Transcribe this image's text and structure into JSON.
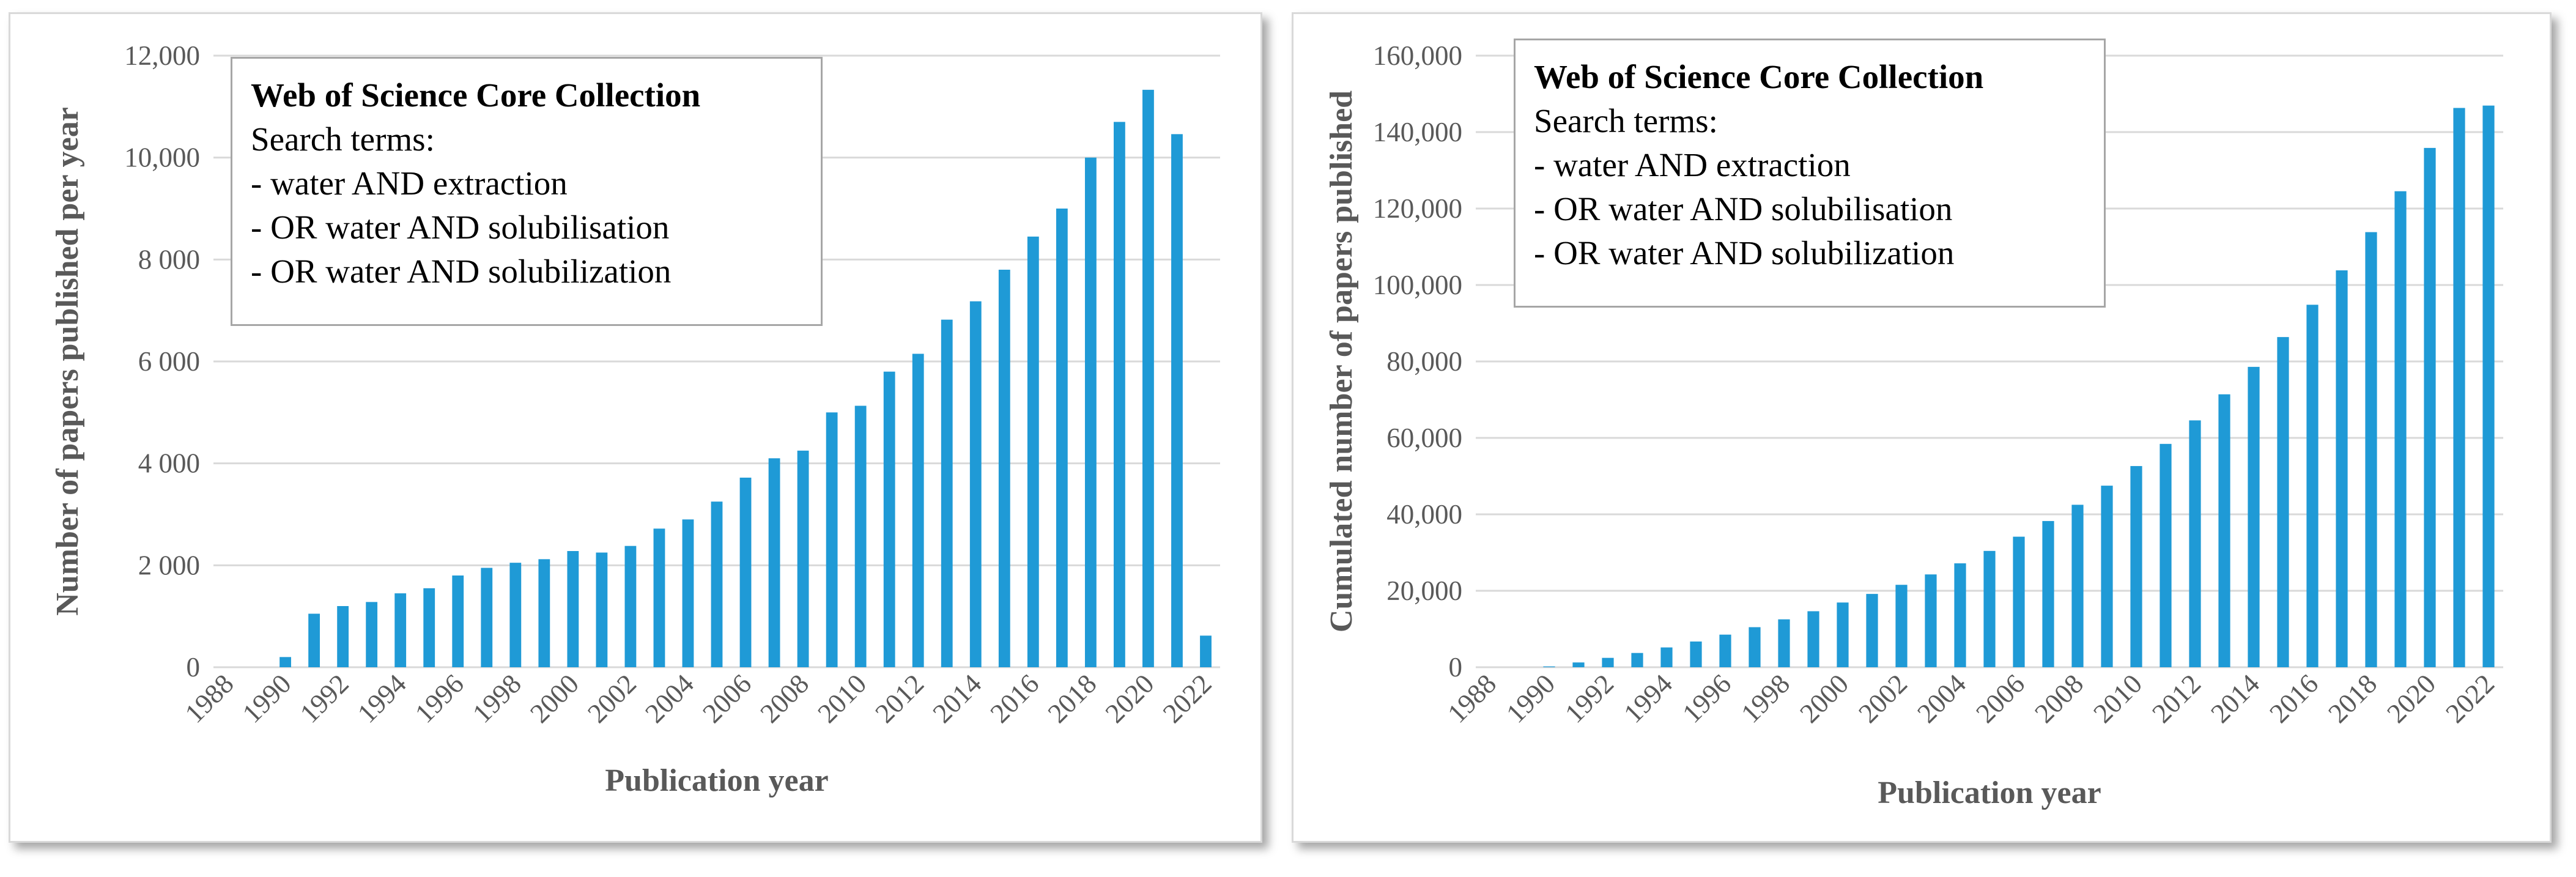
{
  "chart_data": [
    {
      "type": "bar",
      "title": "",
      "info_box": {
        "title": "Web of Science Core Collection",
        "lines": [
          "Search terms:",
          "- water AND extraction",
          "- OR water AND solubilisation",
          "- OR water AND solubilization"
        ]
      },
      "xlabel": "Publication year",
      "ylabel": "Number of papers published  per year",
      "ylim": [
        0,
        12000
      ],
      "y_ticks": [
        0,
        2000,
        4000,
        6000,
        8000,
        10000,
        12000
      ],
      "y_tick_labels": [
        "0",
        "2 000",
        "4 000",
        "6 000",
        "8 000",
        "10,000",
        "12,000"
      ],
      "x_tick_labels": [
        "1988",
        "1990",
        "1992",
        "1994",
        "1996",
        "1998",
        "2000",
        "2002",
        "2004",
        "2006",
        "2008",
        "2010",
        "2012",
        "2014",
        "2016",
        "2018",
        "2020",
        "2022"
      ],
      "categories": [
        1988,
        1989,
        1990,
        1991,
        1992,
        1993,
        1994,
        1995,
        1996,
        1997,
        1998,
        1999,
        2000,
        2001,
        2002,
        2003,
        2004,
        2005,
        2006,
        2007,
        2008,
        2009,
        2010,
        2011,
        2012,
        2013,
        2014,
        2015,
        2016,
        2017,
        2018,
        2019,
        2020,
        2021,
        2022
      ],
      "values": [
        0,
        0,
        200,
        1050,
        1200,
        1280,
        1450,
        1550,
        1800,
        1950,
        2050,
        2120,
        2280,
        2250,
        2380,
        2720,
        2900,
        3250,
        3720,
        4100,
        4250,
        5000,
        5130,
        5800,
        6150,
        6820,
        7180,
        7800,
        8450,
        9000,
        10000,
        10700,
        11330,
        10460,
        620
      ]
    },
    {
      "type": "bar",
      "title": "",
      "info_box": {
        "title": "Web of Science Core Collection",
        "lines": [
          "Search terms:",
          "- water AND extraction",
          "- OR water AND solubilisation",
          "- OR water AND solubilization"
        ]
      },
      "xlabel": "Publication year",
      "ylabel": "Cumulated number of papers published",
      "ylim": [
        0,
        160000
      ],
      "y_ticks": [
        0,
        20000,
        40000,
        60000,
        80000,
        100000,
        120000,
        140000,
        160000
      ],
      "y_tick_labels": [
        "0",
        "20,000",
        "40,000",
        "60,000",
        "80,000",
        "100,000",
        "120,000",
        "140,000",
        "160,000"
      ],
      "x_tick_labels": [
        "1988",
        "1990",
        "1992",
        "1994",
        "1996",
        "1998",
        "2000",
        "2002",
        "2004",
        "2006",
        "2008",
        "2010",
        "2012",
        "2014",
        "2016",
        "2018",
        "2020",
        "2022"
      ],
      "categories": [
        1988,
        1989,
        1990,
        1991,
        1992,
        1993,
        1994,
        1995,
        1996,
        1997,
        1998,
        1999,
        2000,
        2001,
        2002,
        2003,
        2004,
        2005,
        2006,
        2007,
        2008,
        2009,
        2010,
        2011,
        2012,
        2013,
        2014,
        2015,
        2016,
        2017,
        2018,
        2019,
        2020,
        2021,
        2022
      ],
      "values": [
        0,
        0,
        200,
        1250,
        2450,
        3730,
        5180,
        6730,
        8530,
        10480,
        12530,
        14650,
        16930,
        19180,
        21560,
        24280,
        27180,
        30430,
        34150,
        38250,
        42500,
        47500,
        52630,
        58430,
        64580,
        71400,
        78580,
        86380,
        94830,
        103830,
        113830,
        124530,
        135860,
        146320,
        146940
      ]
    }
  ]
}
